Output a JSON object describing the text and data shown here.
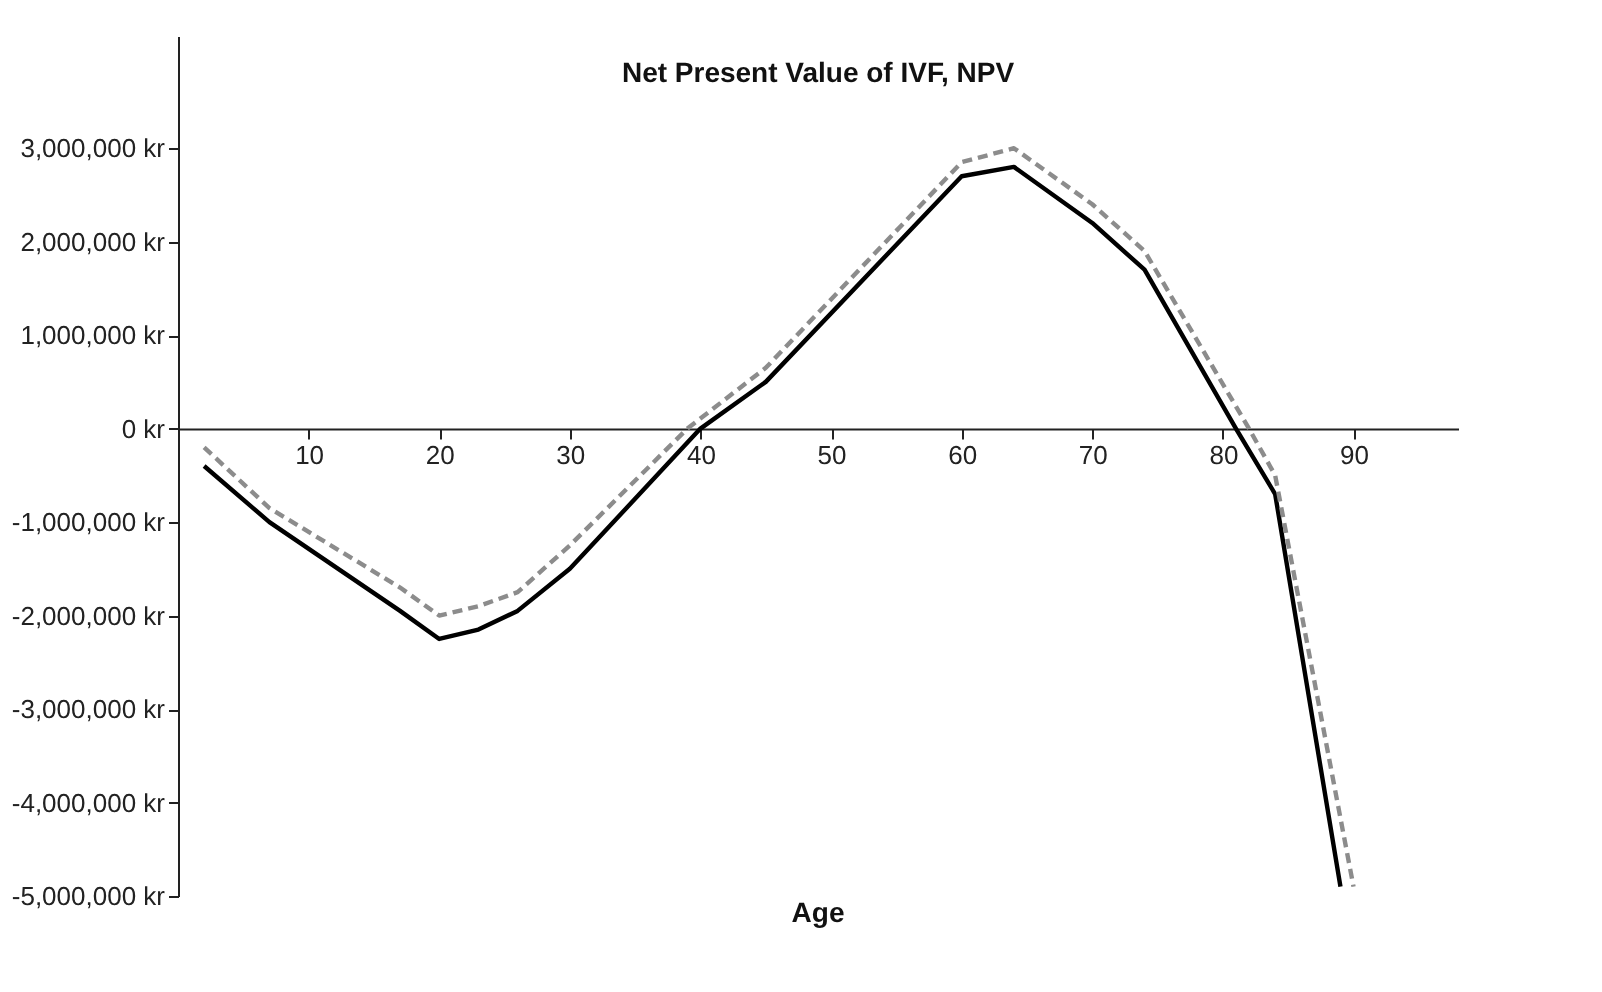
{
  "chart_data": {
    "type": "line",
    "title": "Net Present Value of IVF, NPV",
    "xlabel": "Age",
    "xlim": [
      0,
      98
    ],
    "xticks": [
      10,
      20,
      30,
      40,
      50,
      60,
      70,
      80,
      90
    ],
    "ylim": [
      -5000000,
      4200000
    ],
    "yticks": [
      {
        "value": -5000000,
        "label": "-5,000,000 kr"
      },
      {
        "value": -4000000,
        "label": "-4,000,000 kr"
      },
      {
        "value": -3000000,
        "label": "-3,000,000 kr"
      },
      {
        "value": -2000000,
        "label": "-2,000,000 kr"
      },
      {
        "value": -1000000,
        "label": "-1,000,000 kr"
      },
      {
        "value": 0,
        "label": "0 kr"
      },
      {
        "value": 1000000,
        "label": "1,000,000 kr"
      },
      {
        "value": 2000000,
        "label": "2,000,000 kr"
      },
      {
        "value": 3000000,
        "label": "3,000,000 kr"
      }
    ],
    "grid": false,
    "marker": "none",
    "series": [
      {
        "color": "#000000",
        "line_style": "solid",
        "x": [
          2,
          7,
          17,
          20,
          23,
          26,
          30,
          40,
          45,
          60,
          64,
          70,
          74,
          81,
          84,
          89
        ],
        "values": [
          -400000,
          -1000000,
          -1950000,
          -2250000,
          -2150000,
          -1950000,
          -1500000,
          0,
          500000,
          2700000,
          2800000,
          2200000,
          1700000,
          0,
          -700000,
          -4900000
        ]
      },
      {
        "color": "#8c8c8c",
        "line_style": "dashed",
        "x": [
          2,
          7,
          17,
          20,
          23,
          26,
          30,
          39,
          45,
          60,
          64,
          70,
          74,
          82,
          84,
          90
        ],
        "values": [
          -200000,
          -850000,
          -1700000,
          -2000000,
          -1900000,
          -1750000,
          -1250000,
          0,
          650000,
          2850000,
          3000000,
          2400000,
          1900000,
          0,
          -500000,
          -4900000
        ]
      }
    ]
  }
}
